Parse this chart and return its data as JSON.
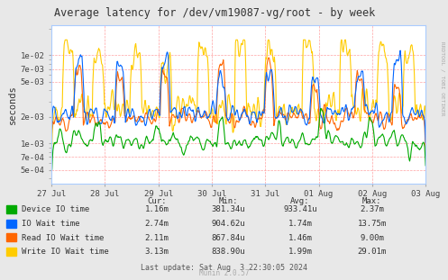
{
  "title": "Average latency for /dev/vm19087-vg/root - by week",
  "ylabel": "seconds",
  "watermark": "Munin 2.0.57",
  "rrdtool_label": "RRDTOOL / TOBI OETIKER",
  "bg_color": "#E8E8E8",
  "plot_bg_color": "#FFFFFF",
  "grid_color": "#FF9999",
  "xlabels": [
    "27 Jul",
    "28 Jul",
    "29 Jul",
    "30 Jul",
    "31 Jul",
    "01 Aug",
    "02 Aug",
    "03 Aug"
  ],
  "yticks": [
    0.0005,
    0.0007,
    0.001,
    0.002,
    0.005,
    0.007,
    0.01
  ],
  "ytick_labels": [
    "5e-04",
    "7e-04",
    "1e-03",
    "2e-03",
    "5e-03",
    "7e-03",
    "1e-02"
  ],
  "ymin": 0.00035,
  "ymax": 0.022,
  "legend_labels": [
    "Device IO time",
    "IO Wait time",
    "Read IO Wait time",
    "Write IO Wait time"
  ],
  "legend_colors": [
    "#00AA00",
    "#0066FF",
    "#FF6600",
    "#FFCC00"
  ],
  "stat_headers": [
    "Cur:",
    "Min:",
    "Avg:",
    "Max:"
  ],
  "stat_rows": [
    [
      "1.16m",
      "381.34u",
      "933.41u",
      "2.37m"
    ],
    [
      "2.74m",
      "904.62u",
      "1.74m",
      "13.75m"
    ],
    [
      "2.11m",
      "867.84u",
      "1.46m",
      "9.00m"
    ],
    [
      "3.13m",
      "838.90u",
      "1.99m",
      "29.01m"
    ]
  ],
  "last_update": "Last update: Sat Aug  3 22:30:05 2024"
}
